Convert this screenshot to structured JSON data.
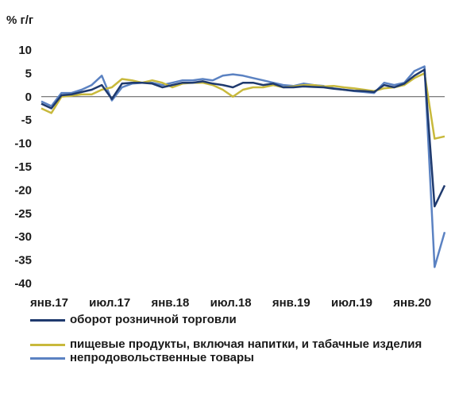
{
  "chart_data": {
    "type": "line",
    "ylabel": "% г/г",
    "ylim": [
      -40,
      10
    ],
    "yticks": [
      10,
      5,
      0,
      -5,
      -10,
      -15,
      -20,
      -25,
      -30,
      -35,
      -40
    ],
    "xticks": [
      "янв.17",
      "июл.17",
      "янв.18",
      "июл.18",
      "янв.19",
      "июл.19",
      "янв.20"
    ],
    "grid": false,
    "legend_position": "bottom",
    "x": [
      "янв.17",
      "фев.17",
      "мар.17",
      "апр.17",
      "май.17",
      "июн.17",
      "июл.17",
      "авг.17",
      "сен.17",
      "окт.17",
      "ноя.17",
      "дек.17",
      "янв.18",
      "фев.18",
      "мар.18",
      "апр.18",
      "май.18",
      "июн.18",
      "июл.18",
      "авг.18",
      "сен.18",
      "окт.18",
      "ноя.18",
      "дек.18",
      "янв.19",
      "фев.19",
      "мар.19",
      "апр.19",
      "май.19",
      "июн.19",
      "июл.19",
      "авг.19",
      "сен.19",
      "окт.19",
      "ноя.19",
      "дек.19",
      "янв.20",
      "фев.20",
      "мар.20",
      "апр.20",
      "май.20"
    ],
    "series": [
      {
        "name": "оборот розничной торговли",
        "color": "#1f3a6e",
        "values": [
          -1.5,
          -2.5,
          0.3,
          0.5,
          1.0,
          1.5,
          2.5,
          -0.5,
          2.8,
          3.0,
          3.0,
          2.8,
          2.0,
          2.5,
          3.0,
          3.0,
          3.3,
          2.8,
          2.5,
          2.0,
          3.0,
          3.0,
          2.5,
          2.8,
          2.0,
          2.0,
          2.2,
          2.1,
          2.0,
          1.7,
          1.5,
          1.3,
          1.2,
          1.0,
          2.5,
          2.0,
          2.8,
          4.5,
          5.8,
          -23.5,
          -19.0
        ]
      },
      {
        "name": "пищевые продукты, включая напитки, и табачные изделия",
        "color": "#c8b93c",
        "values": [
          -2.5,
          -3.5,
          0.0,
          0.2,
          0.5,
          0.5,
          1.5,
          2.0,
          3.8,
          3.5,
          3.0,
          3.5,
          3.0,
          2.0,
          2.8,
          3.0,
          3.0,
          2.5,
          1.5,
          0.0,
          1.5,
          2.0,
          2.0,
          2.5,
          2.0,
          2.2,
          2.5,
          2.5,
          2.2,
          2.3,
          2.0,
          1.8,
          1.5,
          1.2,
          1.8,
          2.0,
          2.5,
          4.0,
          5.0,
          -9.0,
          -8.5
        ]
      },
      {
        "name": "непродовольственные товары",
        "color": "#5b82c2",
        "values": [
          -1.0,
          -2.0,
          0.8,
          0.8,
          1.5,
          2.5,
          4.5,
          -0.8,
          2.0,
          2.8,
          3.0,
          3.0,
          2.5,
          3.0,
          3.5,
          3.5,
          3.8,
          3.5,
          4.5,
          4.8,
          4.5,
          4.0,
          3.5,
          3.0,
          2.5,
          2.3,
          2.8,
          2.5,
          2.3,
          1.8,
          1.5,
          1.2,
          1.0,
          0.8,
          3.0,
          2.5,
          3.0,
          5.5,
          6.5,
          -36.5,
          -29.0
        ]
      }
    ]
  }
}
